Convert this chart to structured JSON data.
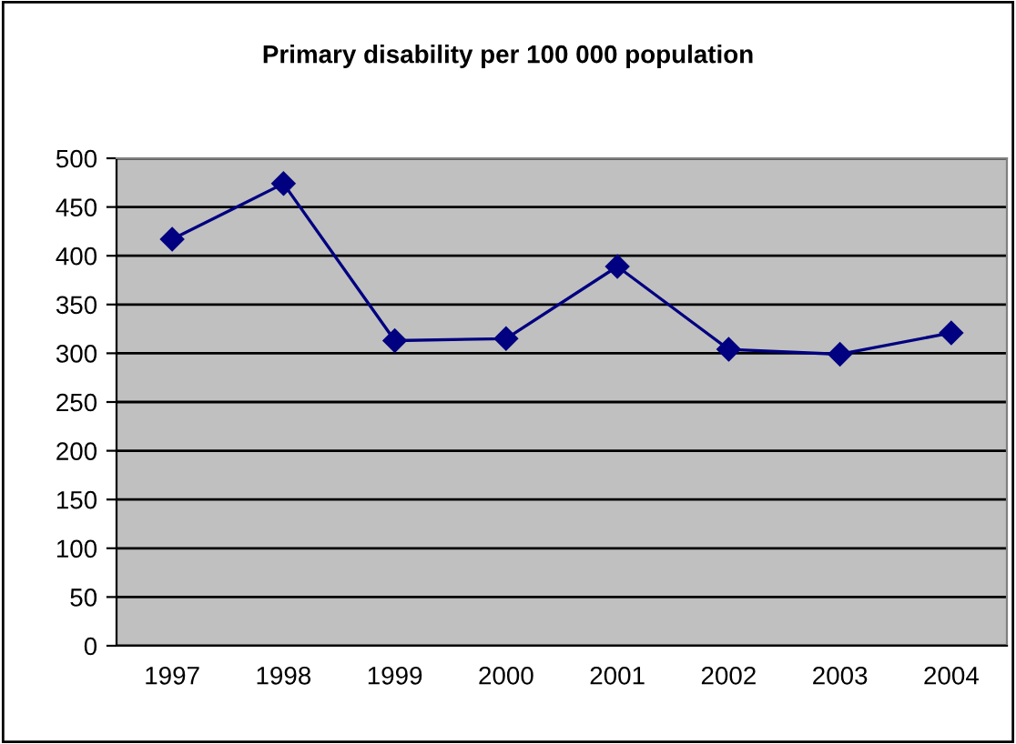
{
  "chart_data": {
    "type": "line",
    "title": "Primary disability per 100 000 population",
    "categories": [
      "1997",
      "1998",
      "1999",
      "2000",
      "2001",
      "2002",
      "2003",
      "2004"
    ],
    "series": [
      {
        "color": "#000080",
        "values": [
          417,
          474,
          313,
          315,
          389,
          304,
          299,
          321
        ]
      }
    ],
    "ylim": [
      0,
      500
    ],
    "yticks": [
      0,
      50,
      100,
      150,
      200,
      250,
      300,
      350,
      400,
      450,
      500
    ],
    "grid": "y",
    "marker": "diamond",
    "line_style": "solid",
    "legend": false
  }
}
